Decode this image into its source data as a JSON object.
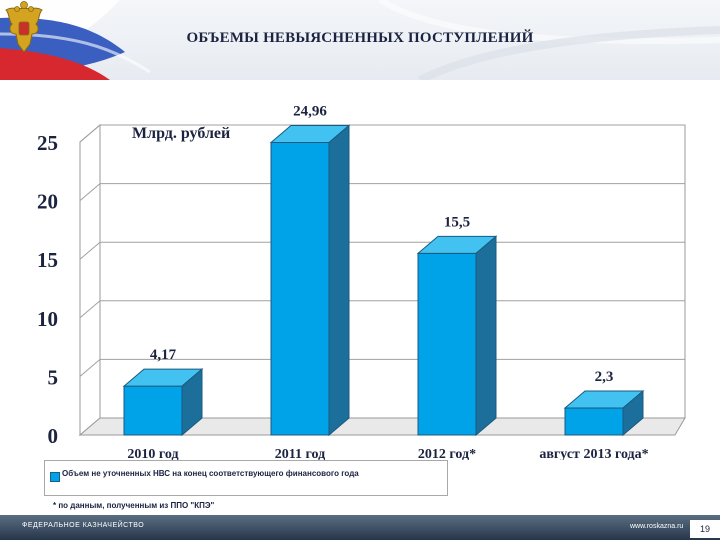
{
  "slide": {
    "title": "ОБЪЕМЫ НЕВЫЯСНЕННЫХ ПОСТУПЛЕНИЙ",
    "unit_label": "Млрд. рублей",
    "legend_label": "Объем не уточненных НВС на конец соответствующего финансового года",
    "footnote": "* по данным, полученным из ППО \"КПЭ\"",
    "footer_org": "ФЕДЕРАЛЬНОЕ КАЗНАЧЕЙСТВО",
    "footer_url": "www.roskazna.ru",
    "page_number": "19"
  },
  "colors": {
    "bar_front": "#00a3e8",
    "bar_top": "#42c2f0",
    "bar_side": "#1b6f9a",
    "text": "#1b2340"
  },
  "chart_data": {
    "type": "bar",
    "categories": [
      "2010 год",
      "2011 год",
      "2012 год*",
      "август 2013 года*"
    ],
    "values": [
      4.17,
      24.96,
      15.5,
      2.3
    ],
    "value_labels": [
      "4,17",
      "24,96",
      "15,5",
      "2,3"
    ],
    "y_ticks": [
      "0",
      "5",
      "10",
      "15",
      "20",
      "25"
    ],
    "ylim": [
      0,
      25
    ],
    "ylabel": "Млрд. рублей",
    "xlabel": "",
    "grid": true,
    "legend_position": "bottom"
  }
}
